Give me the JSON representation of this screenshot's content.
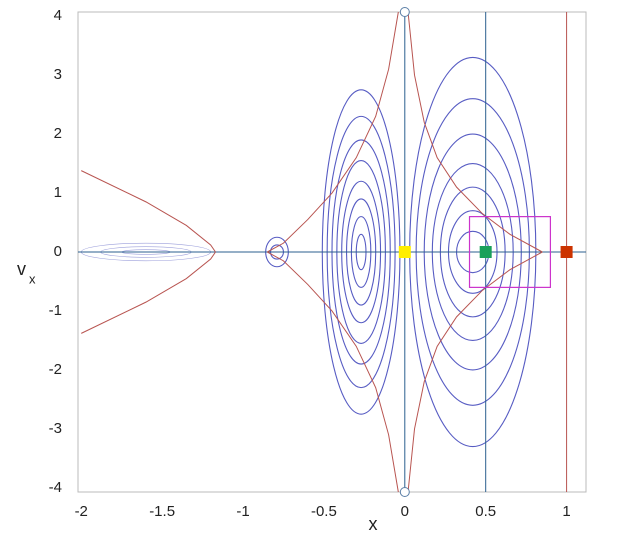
{
  "chart_data": {
    "type": "phase",
    "x_label": "x",
    "y_label": "v",
    "y_label_sub": "x",
    "xlim": [
      -2.02,
      1.12
    ],
    "ylim": [
      -4.07,
      4.07
    ],
    "xticks": [
      -2,
      -1.5,
      -1,
      -0.5,
      0,
      0.5,
      1
    ],
    "yticks": [
      -4,
      -3,
      -2,
      -1,
      0,
      1,
      2,
      3,
      4
    ],
    "orbit_color": "#3a3fb8",
    "orbits": [
      {
        "cx": -0.27,
        "rx": [
          0.03,
          0.06,
          0.09,
          0.12,
          0.15,
          0.18,
          0.21,
          0.24
        ],
        "ry": [
          0.3,
          0.6,
          0.9,
          1.2,
          1.55,
          1.9,
          2.3,
          2.75
        ]
      },
      {
        "cx": 0.42,
        "rx": [
          0.1,
          0.15,
          0.2,
          0.25,
          0.3,
          0.35,
          0.39
        ],
        "ry": [
          0.35,
          0.7,
          1.1,
          1.5,
          2.0,
          2.6,
          3.3
        ]
      },
      {
        "cx": -0.79,
        "rx": [
          0.04,
          0.07
        ],
        "ry": [
          0.12,
          0.25
        ]
      },
      {
        "cx": -1.6,
        "rx": [
          0.15,
          0.28,
          0.4
        ],
        "ry": [
          0.04,
          0.09,
          0.15
        ]
      }
    ],
    "separatrix_color": "#b85450",
    "separatrices": [
      {
        "x": [
          -2,
          -1.6,
          -1.35,
          -1.2,
          -1.17
        ],
        "y": [
          1.38,
          0.85,
          0.45,
          0.12,
          0
        ]
      },
      {
        "x": [
          -2,
          -1.6,
          -1.35,
          -1.2,
          -1.17
        ],
        "y": [
          -1.38,
          -0.85,
          -0.45,
          -0.12,
          0
        ]
      },
      {
        "x": [
          -0.85,
          -0.75,
          -0.6,
          -0.45,
          -0.3,
          -0.18,
          -0.1,
          -0.04
        ],
        "y": [
          0,
          0.15,
          0.55,
          1.0,
          1.6,
          2.3,
          3.1,
          4.07
        ]
      },
      {
        "x": [
          -0.85,
          -0.75,
          -0.6,
          -0.45,
          -0.3,
          -0.18,
          -0.1,
          -0.04
        ],
        "y": [
          0,
          -0.15,
          -0.55,
          -1.0,
          -1.6,
          -2.3,
          -3.1,
          -4.07
        ]
      },
      {
        "x": [
          0.02,
          0.06,
          0.12,
          0.2,
          0.32,
          0.48,
          0.65,
          0.85
        ],
        "y": [
          4.07,
          3.0,
          2.2,
          1.6,
          1.1,
          0.65,
          0.3,
          0
        ]
      },
      {
        "x": [
          0.02,
          0.06,
          0.12,
          0.2,
          0.32,
          0.48,
          0.65,
          0.85
        ],
        "y": [
          -4.07,
          -3.0,
          -2.2,
          -1.6,
          -1.1,
          -0.65,
          -0.3,
          0
        ]
      }
    ],
    "vlines": [
      {
        "value": 0,
        "color": "#2b5f8f"
      },
      {
        "value": 0.5,
        "color": "#2b5f8f"
      },
      {
        "value": 1,
        "color": "#b85450"
      }
    ],
    "hline": {
      "value": 0,
      "color": "#2b5f8f"
    },
    "highlight_box": {
      "x": [
        0.4,
        0.9
      ],
      "y": [
        -0.6,
        0.6
      ],
      "color": "#cc33cc"
    },
    "markers": [
      {
        "x": 0,
        "y": 0,
        "color": "#ffee00"
      },
      {
        "x": 0.5,
        "y": 0,
        "color": "#1aa05a"
      },
      {
        "x": 1,
        "y": 0,
        "color": "#cc3300"
      }
    ]
  }
}
